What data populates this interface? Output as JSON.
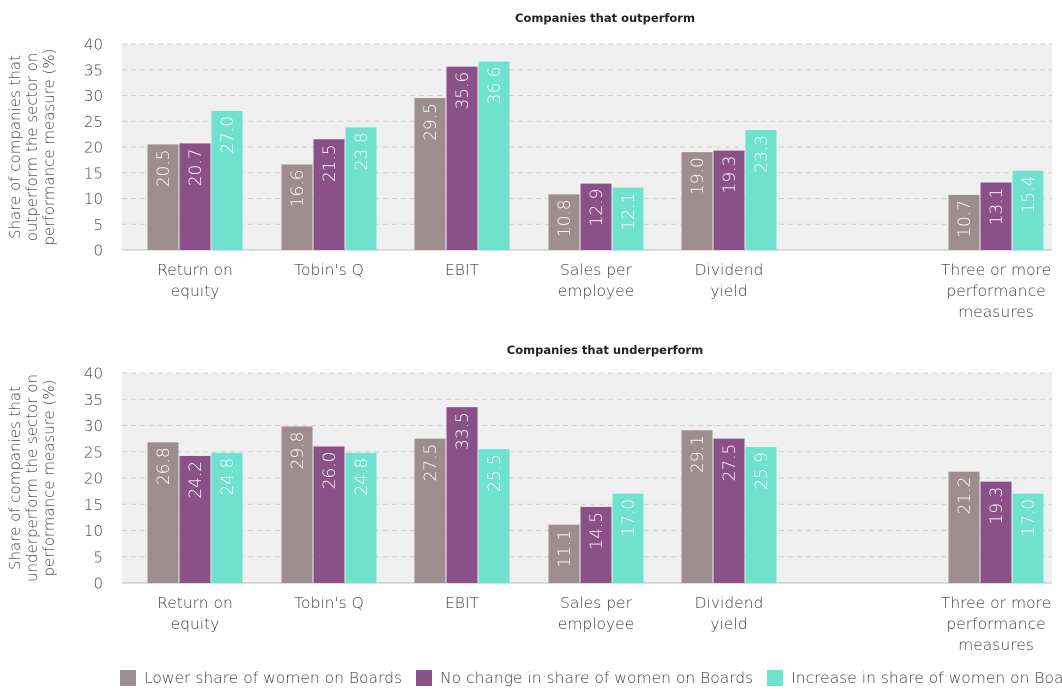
{
  "colors": {
    "lower": "#9e8d8f",
    "no_change": "#8a5088",
    "increase": "#6ee1cf",
    "plot_bg": "#efefef",
    "grid": "#cfcfcf"
  },
  "legend": [
    {
      "label": "Lower share of women on Boards",
      "color": "#9e8d8f"
    },
    {
      "label": "No change in share of women on Boards",
      "color": "#8a5088"
    },
    {
      "label": "Increase in share of women on Boards",
      "color": "#6ee1cf"
    }
  ],
  "chart_data": [
    {
      "type": "bar",
      "title": "Companies that outperform",
      "ylabel": [
        "Share of companies that",
        "outperform the sector on",
        "performance measure (%)"
      ],
      "ylim": [
        0,
        40
      ],
      "yticks": [
        "0",
        "5",
        "10",
        "15",
        "20",
        "25",
        "30",
        "35",
        "40"
      ],
      "grid": true,
      "categories": [
        [
          "Return on",
          "equity"
        ],
        [
          "Tobin's Q"
        ],
        [
          "EBIT"
        ],
        [
          "Sales per",
          "employee"
        ],
        [
          "Dividend",
          "yield"
        ],
        [],
        [
          "Three or more",
          "performance",
          "measures"
        ]
      ],
      "series": [
        {
          "name": "Lower share of women on Boards",
          "values": [
            20.5,
            16.6,
            29.5,
            10.8,
            19.0,
            null,
            10.7
          ],
          "labels": [
            "20.5",
            "16.6",
            "29.5",
            "10.8",
            "19.0",
            "",
            "10.7"
          ]
        },
        {
          "name": "No change in share of women on Boards",
          "values": [
            20.7,
            21.5,
            35.6,
            12.9,
            19.3,
            null,
            13.1
          ],
          "labels": [
            "20.7",
            "21.5",
            "35.6",
            "12.9",
            "19.3",
            "",
            "13.1"
          ]
        },
        {
          "name": "Increase in share of women on Boards",
          "values": [
            27.0,
            23.8,
            36.6,
            12.1,
            23.3,
            null,
            15.4
          ],
          "labels": [
            "27.0",
            "23.8",
            "36.6",
            "12.1",
            "23.3",
            "",
            "15.4"
          ]
        }
      ]
    },
    {
      "type": "bar",
      "title": "Companies that underperform",
      "ylabel": [
        "Share of companies that",
        "underperform the sector on",
        "performance measure (%)"
      ],
      "ylim": [
        0,
        40
      ],
      "yticks": [
        "0",
        "5",
        "10",
        "15",
        "20",
        "25",
        "30",
        "35",
        "40"
      ],
      "grid": true,
      "categories": [
        [
          "Return on",
          "equity"
        ],
        [
          "Tobin's Q"
        ],
        [
          "EBIT"
        ],
        [
          "Sales per",
          "employee"
        ],
        [
          "Dividend",
          "yield"
        ],
        [],
        [
          "Three or more",
          "performance",
          "measures"
        ]
      ],
      "series": [
        {
          "name": "Lower share of women on Boards",
          "values": [
            26.8,
            29.8,
            27.5,
            11.1,
            29.1,
            null,
            21.2
          ],
          "labels": [
            "26.8",
            "29.8",
            "27.5",
            "11.1",
            "29.1",
            "",
            "21.2"
          ]
        },
        {
          "name": "No change in share of women on Boards",
          "values": [
            24.2,
            26.0,
            33.5,
            14.5,
            27.5,
            null,
            19.3
          ],
          "labels": [
            "24.2",
            "26.0",
            "33.5",
            "14.5",
            "27.5",
            "",
            "19.3"
          ]
        },
        {
          "name": "Increase in share of women on Boards",
          "values": [
            24.8,
            24.8,
            25.5,
            17.0,
            25.9,
            null,
            17.0
          ],
          "labels": [
            "24.8",
            "24.8",
            "25.5",
            "17.0",
            "25.9",
            "",
            "17.0"
          ]
        }
      ]
    }
  ]
}
